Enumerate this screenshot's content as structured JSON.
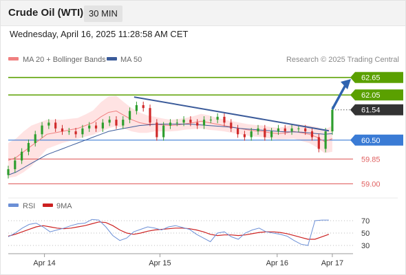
{
  "header": {
    "title": "Crude Oil (WTI)",
    "timeframe": "30 MIN"
  },
  "timestamp": "Wednesday, April 16, 2025 11:28:58 AM CET",
  "legend": {
    "ma20_label": "MA 20 + Bollinger Bands",
    "ma50_label": "MA 50",
    "credit": "Research © 2025 Trading Central",
    "rsi_label": "RSI",
    "rsi_ma_label": "9MA"
  },
  "colors": {
    "ma20": "#f08080",
    "band_fill": "#ffd9d9",
    "ma50": "#3b5b9a",
    "resistance": "#5aa000",
    "pivot": "#3a7bd5",
    "support": "#e06060",
    "current": "#333333",
    "candle_up": "#2e9e2e",
    "candle_down": "#d02a2a",
    "rsi": "#6b8fd6",
    "rsi_ma": "#cc2020",
    "arrow": "#2f63b0"
  },
  "chart_data": [
    {
      "type": "candlestick",
      "title": "Crude Oil (WTI)",
      "timeframe": "30 MIN",
      "x_ticks": [
        "Apr 14",
        "Apr 15",
        "Apr 16",
        "Apr 17"
      ],
      "ylim": [
        58.7,
        62.95
      ],
      "levels": [
        {
          "label": "62.65",
          "value": 62.65,
          "kind": "resistance"
        },
        {
          "label": "62.05",
          "value": 62.05,
          "kind": "resistance"
        },
        {
          "label": "61.54",
          "value": 61.54,
          "kind": "current"
        },
        {
          "label": "60.50",
          "value": 60.5,
          "kind": "pivot"
        },
        {
          "label": "59.85",
          "value": 59.85,
          "kind": "support"
        },
        {
          "label": "59.00",
          "value": 59.0,
          "kind": "support"
        }
      ],
      "series": [
        {
          "name": "MA 20 + Bollinger Bands",
          "values": [
            59.8,
            59.9,
            60.1,
            60.3,
            60.5,
            60.7,
            60.75,
            60.8,
            60.85,
            60.9,
            61.0,
            61.1,
            61.3,
            61.45,
            61.5,
            61.35,
            61.2,
            61.1,
            61.05,
            61.05,
            61.02,
            61.0,
            61.02,
            61.06,
            61.1,
            61.15,
            61.1,
            61.05,
            61.0,
            60.95,
            60.9,
            60.85,
            60.82,
            60.8,
            60.75,
            60.72,
            60.75,
            60.8,
            60.75,
            60.7,
            60.6,
            60.45,
            60.55
          ]
        },
        {
          "name": "MA 50",
          "values": [
            59.3,
            59.4,
            59.55,
            59.7,
            59.85,
            60.0,
            60.1,
            60.2,
            60.3,
            60.4,
            60.5,
            60.6,
            60.7,
            60.8,
            60.85,
            60.9,
            60.95,
            61.0,
            61.02,
            61.04,
            61.05,
            61.05,
            61.05,
            61.05,
            61.04,
            61.02,
            61.0,
            60.98,
            60.96,
            60.94,
            60.9,
            60.88,
            60.86,
            60.84,
            60.82,
            60.8,
            60.78,
            60.78,
            60.77,
            60.75,
            60.72,
            60.7,
            60.72
          ]
        }
      ],
      "candles_close": [
        59.5,
        59.8,
        60.1,
        60.4,
        60.7,
        61.0,
        61.1,
        60.9,
        60.8,
        60.8,
        60.7,
        60.9,
        61.0,
        60.9,
        61.1,
        61.2,
        61.0,
        61.2,
        61.5,
        61.7,
        61.6,
        61.1,
        60.6,
        61.0,
        61.1,
        61.1,
        61.2,
        61.1,
        61.0,
        61.2,
        61.2,
        61.3,
        61.1,
        60.9,
        60.7,
        60.6,
        60.8,
        60.9,
        60.6,
        60.8,
        60.9,
        60.8,
        60.9,
        60.9,
        60.8,
        60.6,
        60.2,
        60.8,
        61.54
      ],
      "trendlines": [
        {
          "from": [
            0.365,
            61.98
          ],
          "to": [
            0.93,
            60.82
          ],
          "name": "downtrend"
        }
      ],
      "projection": {
        "from": [
          0.94,
          61.56
        ],
        "to": [
          0.99,
          62.55
        ]
      }
    },
    {
      "type": "line",
      "ylim": [
        20,
        80
      ],
      "y_ticks": [
        "70",
        "50",
        "30"
      ],
      "series": [
        {
          "name": "RSI",
          "values": [
            44,
            50,
            58,
            64,
            66,
            60,
            52,
            55,
            58,
            62,
            65,
            66,
            72,
            71,
            60,
            46,
            38,
            42,
            52,
            56,
            60,
            58,
            55,
            60,
            62,
            59,
            56,
            48,
            42,
            36,
            50,
            52,
            44,
            40,
            50,
            55,
            58,
            52,
            50,
            48,
            45,
            38,
            32,
            30,
            70,
            71,
            71
          ]
        },
        {
          "name": "9MA",
          "values": [
            45,
            48,
            52,
            56,
            60,
            62,
            60,
            58,
            57,
            58,
            60,
            62,
            65,
            68,
            67,
            62,
            55,
            50,
            48,
            50,
            53,
            55,
            56,
            57,
            58,
            58,
            57,
            55,
            52,
            48,
            46,
            47,
            47,
            46,
            47,
            49,
            51,
            52,
            52,
            51,
            49,
            46,
            43,
            40,
            40,
            44,
            48
          ]
        }
      ]
    }
  ]
}
